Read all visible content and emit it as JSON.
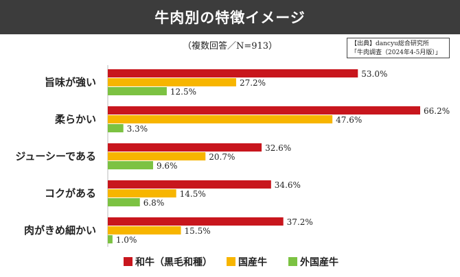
{
  "header": {
    "title": "牛肉別の特徴イメージ",
    "subtitle": "（複数回答／N=913）",
    "source_line1": "【出典】dancyu総合研究所",
    "source_line2": "「牛肉調査（2024年4-5月版）」"
  },
  "chart_data": {
    "type": "bar",
    "orientation": "horizontal",
    "title": "牛肉別の特徴イメージ",
    "subtitle": "（複数回答／N=913）",
    "categories": [
      "旨味が強い",
      "柔らかい",
      "ジューシーである",
      "コクがある",
      "肉がきめ細かい"
    ],
    "series": [
      {
        "name": "和牛（黒毛和種）",
        "color": "#c8161d",
        "values": [
          53.0,
          66.2,
          32.6,
          34.6,
          37.2
        ],
        "labels": [
          "53.0%",
          "66.2%",
          "32.6%",
          "34.6%",
          "37.2%"
        ]
      },
      {
        "name": "国産牛",
        "color": "#f7b500",
        "values": [
          27.2,
          47.6,
          20.7,
          14.5,
          15.5
        ],
        "labels": [
          "27.2%",
          "47.6%",
          "20.7%",
          "14.5%",
          "15.5%"
        ]
      },
      {
        "name": "外国産牛",
        "color": "#7cc242",
        "values": [
          12.5,
          3.3,
          9.6,
          6.8,
          1.0
        ],
        "labels": [
          "12.5%",
          "3.3%",
          "9.6%",
          "6.8%",
          "1.0%"
        ]
      }
    ],
    "xlim": [
      0,
      70
    ],
    "grid": false,
    "legend_position": "bottom"
  }
}
